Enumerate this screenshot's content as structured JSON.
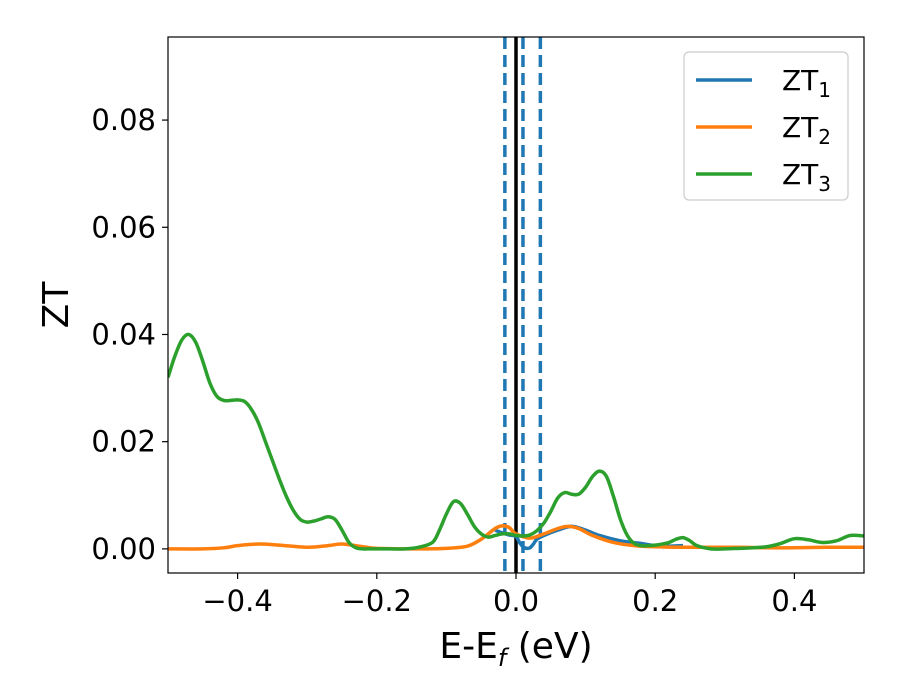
{
  "chart_data": {
    "type": "line",
    "xlabel": "E-E",
    "xlabel_sub": "f",
    "xlabel_unit": " (eV)",
    "ylabel": "ZT",
    "xlim": [
      -0.5,
      0.5
    ],
    "ylim": [
      -0.0045,
      0.0955
    ],
    "xticks": [
      -0.4,
      -0.2,
      0.0,
      0.2,
      0.4
    ],
    "xtick_labels": [
      "−0.4",
      "−0.2",
      "0.0",
      "0.2",
      "0.4"
    ],
    "yticks": [
      0.0,
      0.02,
      0.04,
      0.06,
      0.08
    ],
    "ytick_labels": [
      "0.00",
      "0.02",
      "0.04",
      "0.06",
      "0.08"
    ],
    "grid": false,
    "legend_position": "top-right",
    "vlines": [
      {
        "x": -0.016,
        "style": "dashed",
        "color": "#1f77b4"
      },
      {
        "x": 0.0,
        "style": "solid",
        "color": "#000000"
      },
      {
        "x": 0.01,
        "style": "dashed",
        "color": "#1f77b4"
      },
      {
        "x": 0.035,
        "style": "dashed",
        "color": "#1f77b4"
      }
    ],
    "series": [
      {
        "name": "ZT",
        "sub": "1",
        "color": "#1f77b4",
        "x": [
          -0.03,
          -0.02,
          -0.01,
          0.0,
          0.005,
          0.01,
          0.015,
          0.02,
          0.025,
          0.03,
          0.04,
          0.06,
          0.08,
          0.1,
          0.12,
          0.15,
          0.18,
          0.2,
          0.22,
          0.24
        ],
        "y": [
          0.0035,
          0.003,
          0.0026,
          0.0023,
          0.0012,
          0.0004,
          0.0001,
          0.0002,
          0.0009,
          0.0018,
          0.0025,
          0.0035,
          0.0042,
          0.0035,
          0.0025,
          0.0015,
          0.001,
          0.0006,
          0.0005,
          0.0006
        ]
      },
      {
        "name": "ZT",
        "sub": "2",
        "color": "#ff7f0e",
        "x": [
          -0.5,
          -0.45,
          -0.42,
          -0.4,
          -0.37,
          -0.34,
          -0.3,
          -0.27,
          -0.25,
          -0.22,
          -0.2,
          -0.15,
          -0.1,
          -0.07,
          -0.05,
          -0.03,
          -0.02,
          -0.01,
          0.0,
          0.02,
          0.04,
          0.06,
          0.075,
          0.09,
          0.11,
          0.14,
          0.17,
          0.2,
          0.24,
          0.28,
          0.32,
          0.36,
          0.4,
          0.45,
          0.5
        ],
        "y": [
          0.0,
          0.0,
          0.0002,
          0.0006,
          0.0009,
          0.0007,
          0.0003,
          0.0006,
          0.0009,
          0.0004,
          0.0001,
          0.0,
          0.0001,
          0.0005,
          0.0018,
          0.0038,
          0.0043,
          0.004,
          0.0028,
          0.002,
          0.0028,
          0.0038,
          0.0042,
          0.0038,
          0.0025,
          0.0012,
          0.0006,
          0.0004,
          0.0003,
          0.0003,
          0.0003,
          0.0002,
          0.0002,
          0.0003,
          0.0003
        ]
      },
      {
        "name": "ZT",
        "sub": "3",
        "color": "#2ca02c",
        "x": [
          -0.5,
          -0.49,
          -0.48,
          -0.47,
          -0.46,
          -0.45,
          -0.44,
          -0.43,
          -0.42,
          -0.41,
          -0.4,
          -0.39,
          -0.38,
          -0.37,
          -0.36,
          -0.35,
          -0.34,
          -0.33,
          -0.32,
          -0.31,
          -0.3,
          -0.29,
          -0.28,
          -0.27,
          -0.26,
          -0.25,
          -0.24,
          -0.23,
          -0.22,
          -0.21,
          -0.2,
          -0.18,
          -0.16,
          -0.14,
          -0.12,
          -0.11,
          -0.1,
          -0.09,
          -0.08,
          -0.07,
          -0.06,
          -0.05,
          -0.04,
          -0.03,
          -0.02,
          -0.01,
          0.0,
          0.01,
          0.02,
          0.03,
          0.04,
          0.05,
          0.06,
          0.07,
          0.08,
          0.09,
          0.1,
          0.11,
          0.12,
          0.13,
          0.14,
          0.15,
          0.16,
          0.17,
          0.18,
          0.19,
          0.2,
          0.21,
          0.22,
          0.23,
          0.24,
          0.25,
          0.26,
          0.28,
          0.3,
          0.32,
          0.34,
          0.36,
          0.38,
          0.4,
          0.42,
          0.44,
          0.46,
          0.48,
          0.5
        ],
        "y": [
          0.032,
          0.036,
          0.039,
          0.04,
          0.0385,
          0.035,
          0.031,
          0.0285,
          0.0277,
          0.0277,
          0.0278,
          0.0275,
          0.026,
          0.0235,
          0.02,
          0.0165,
          0.013,
          0.0098,
          0.0072,
          0.0055,
          0.005,
          0.0052,
          0.0056,
          0.006,
          0.0055,
          0.0035,
          0.0012,
          0.0002,
          0.0,
          0.0,
          0.0,
          0.0,
          0.0,
          0.0003,
          0.0012,
          0.0035,
          0.0065,
          0.0088,
          0.0085,
          0.0065,
          0.0042,
          0.0028,
          0.0022,
          0.0025,
          0.0028,
          0.0028,
          0.0025,
          0.0024,
          0.0026,
          0.0034,
          0.0048,
          0.007,
          0.0095,
          0.0105,
          0.0102,
          0.0102,
          0.0115,
          0.0135,
          0.0145,
          0.0135,
          0.0098,
          0.0055,
          0.0025,
          0.001,
          0.0006,
          0.0006,
          0.0007,
          0.0009,
          0.0012,
          0.0018,
          0.0021,
          0.0015,
          0.0006,
          0.0,
          0.0,
          0.0001,
          0.0002,
          0.0004,
          0.001,
          0.0019,
          0.0017,
          0.0012,
          0.0015,
          0.0025,
          0.0024
        ]
      }
    ]
  }
}
